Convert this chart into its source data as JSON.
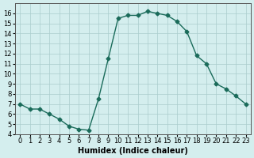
{
  "x": [
    0,
    1,
    2,
    3,
    4,
    5,
    6,
    7,
    8,
    9,
    10,
    11,
    12,
    13,
    14,
    15,
    16,
    17,
    18,
    19,
    20,
    21,
    22,
    23
  ],
  "y": [
    7.0,
    6.5,
    6.5,
    6.0,
    5.5,
    4.8,
    4.5,
    4.4,
    7.5,
    11.5,
    15.5,
    15.8,
    15.8,
    16.2,
    16.0,
    15.8,
    15.2,
    14.2,
    11.8,
    11.0,
    9.0,
    8.5,
    7.8,
    7.0
  ],
  "xlabel": "Humidex (Indice chaleur)",
  "xlim": [
    -0.5,
    23.5
  ],
  "ylim": [
    4,
    17
  ],
  "yticks": [
    4,
    5,
    6,
    7,
    8,
    9,
    10,
    11,
    12,
    13,
    14,
    15,
    16
  ],
  "xticks": [
    0,
    1,
    2,
    3,
    4,
    5,
    6,
    7,
    8,
    9,
    10,
    11,
    12,
    13,
    14,
    15,
    16,
    17,
    18,
    19,
    20,
    21,
    22,
    23
  ],
  "line_color": "#1a6b5a",
  "bg_color": "#d4eeee",
  "grid_color": "#aacccc",
  "label_fontsize": 7,
  "tick_fontsize": 6
}
